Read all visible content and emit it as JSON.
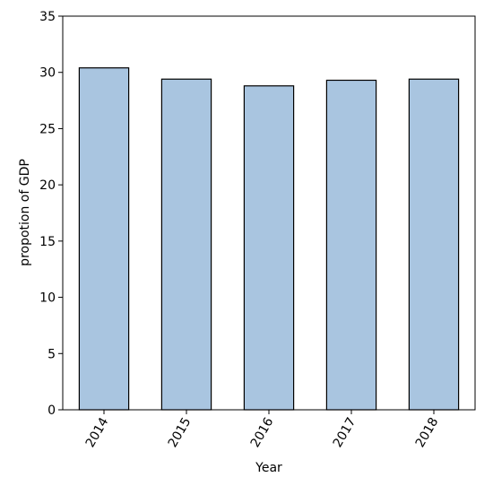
{
  "chart_data": {
    "type": "bar",
    "x_label": "Year",
    "y_label": "propotion of GDP",
    "categories": [
      "2014",
      "2015",
      "2016",
      "2017",
      "2018"
    ],
    "values": [
      30.4,
      29.4,
      28.8,
      29.3,
      29.4
    ],
    "color": "#a9c5e0",
    "edge_color": "#000000",
    "ylim": [
      0,
      35
    ],
    "yticks": [
      0,
      5,
      10,
      15,
      20,
      25,
      30,
      35
    ]
  }
}
